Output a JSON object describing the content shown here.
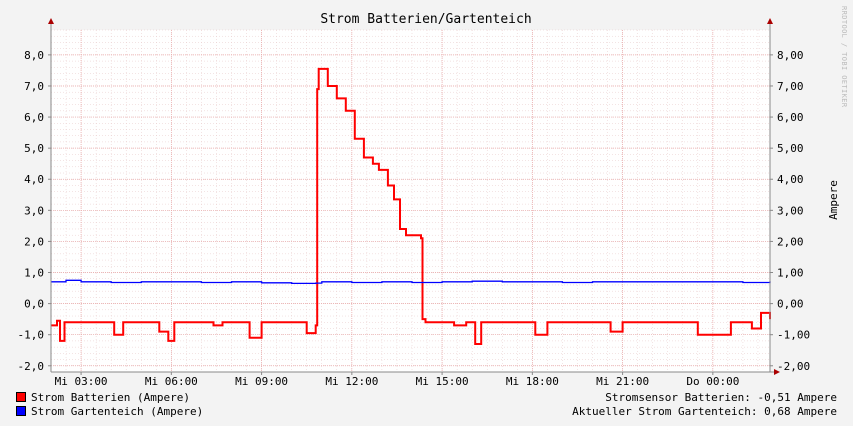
{
  "chart_data": {
    "type": "line",
    "title": "Strom Batterien/Gartenteich",
    "ylabel_right": "Ampere",
    "watermark": "RRDTOOL / TOBI OETIKER",
    "ylim": [
      -2.2,
      8.8
    ],
    "y_ticks_left": [
      "-2,0",
      "-1,0",
      "0,0",
      "1,0",
      "2,0",
      "3,0",
      "4,0",
      "5,0",
      "6,0",
      "7,0",
      "8,0"
    ],
    "y_ticks_right": [
      "-2,00",
      "-1,00",
      "0,00",
      "1,00",
      "2,00",
      "3,00",
      "4,00",
      "5,00",
      "6,00",
      "7,00",
      "8,00"
    ],
    "y_tick_values": [
      -2,
      -1,
      0,
      1,
      2,
      3,
      4,
      5,
      6,
      7,
      8
    ],
    "x_range_hours": [
      2.0,
      25.9
    ],
    "x_ticks": [
      {
        "h": 3,
        "label": "Mi 03:00"
      },
      {
        "h": 6,
        "label": "Mi 06:00"
      },
      {
        "h": 9,
        "label": "Mi 09:00"
      },
      {
        "h": 12,
        "label": "Mi 12:00"
      },
      {
        "h": 15,
        "label": "Mi 15:00"
      },
      {
        "h": 18,
        "label": "Mi 18:00"
      },
      {
        "h": 21,
        "label": "Mi 21:00"
      },
      {
        "h": 24,
        "label": "Do 00:00"
      }
    ],
    "series": [
      {
        "name": "Strom Batterien (Ampere)",
        "color": "#ff0000",
        "points": [
          [
            2.0,
            -0.7
          ],
          [
            2.2,
            -0.55
          ],
          [
            2.3,
            -1.2
          ],
          [
            2.45,
            -0.6
          ],
          [
            3.0,
            -0.6
          ],
          [
            3.8,
            -0.6
          ],
          [
            4.1,
            -1.0
          ],
          [
            4.4,
            -0.6
          ],
          [
            5.4,
            -0.6
          ],
          [
            5.6,
            -0.9
          ],
          [
            5.9,
            -1.2
          ],
          [
            6.1,
            -0.6
          ],
          [
            6.8,
            -0.6
          ],
          [
            7.4,
            -0.7
          ],
          [
            7.7,
            -0.6
          ],
          [
            8.6,
            -1.1
          ],
          [
            9.0,
            -0.6
          ],
          [
            10.3,
            -0.6
          ],
          [
            10.5,
            -0.95
          ],
          [
            10.8,
            -0.7
          ],
          [
            10.85,
            6.9
          ],
          [
            10.9,
            7.55
          ],
          [
            11.2,
            7.0
          ],
          [
            11.5,
            6.6
          ],
          [
            11.8,
            6.2
          ],
          [
            12.1,
            5.3
          ],
          [
            12.4,
            4.7
          ],
          [
            12.7,
            4.5
          ],
          [
            12.9,
            4.3
          ],
          [
            13.2,
            3.8
          ],
          [
            13.4,
            3.35
          ],
          [
            13.6,
            2.4
          ],
          [
            13.8,
            2.2
          ],
          [
            14.2,
            2.2
          ],
          [
            14.3,
            2.1
          ],
          [
            14.35,
            -0.5
          ],
          [
            14.45,
            -0.6
          ],
          [
            15.0,
            -0.6
          ],
          [
            15.4,
            -0.7
          ],
          [
            15.8,
            -0.6
          ],
          [
            16.1,
            -1.3
          ],
          [
            16.3,
            -0.6
          ],
          [
            17.5,
            -0.6
          ],
          [
            18.1,
            -1.0
          ],
          [
            18.5,
            -0.6
          ],
          [
            19.0,
            -0.6
          ],
          [
            20.0,
            -0.6
          ],
          [
            20.6,
            -0.9
          ],
          [
            21.0,
            -0.6
          ],
          [
            23.1,
            -0.6
          ],
          [
            23.5,
            -1.0
          ],
          [
            24.6,
            -0.6
          ],
          [
            25.3,
            -0.8
          ],
          [
            25.6,
            -0.3
          ],
          [
            25.9,
            -0.5
          ]
        ]
      },
      {
        "name": "Strom Gartenteich (Ampere)",
        "color": "#0000ff",
        "points": [
          [
            2.0,
            0.7
          ],
          [
            2.5,
            0.75
          ],
          [
            3.0,
            0.7
          ],
          [
            4.0,
            0.68
          ],
          [
            5.0,
            0.7
          ],
          [
            6.0,
            0.7
          ],
          [
            7.0,
            0.68
          ],
          [
            8.0,
            0.7
          ],
          [
            9.0,
            0.67
          ],
          [
            10.0,
            0.65
          ],
          [
            10.8,
            0.66
          ],
          [
            11.0,
            0.7
          ],
          [
            12.0,
            0.68
          ],
          [
            13.0,
            0.7
          ],
          [
            14.0,
            0.68
          ],
          [
            15.0,
            0.7
          ],
          [
            16.0,
            0.72
          ],
          [
            17.0,
            0.7
          ],
          [
            18.0,
            0.7
          ],
          [
            19.0,
            0.68
          ],
          [
            20.0,
            0.7
          ],
          [
            21.0,
            0.7
          ],
          [
            22.0,
            0.7
          ],
          [
            23.0,
            0.7
          ],
          [
            24.0,
            0.7
          ],
          [
            25.0,
            0.68
          ],
          [
            25.9,
            0.72
          ]
        ]
      }
    ]
  },
  "legend": {
    "batterien": "Strom Batterien (Ampere)",
    "gartenteich": "Strom Gartenteich (Ampere)"
  },
  "status": {
    "batterien": "Stromsensor Batterien: -0,51 Ampere",
    "gartenteich": "Aktueller Strom Gartenteich: 0,68 Ampere"
  }
}
